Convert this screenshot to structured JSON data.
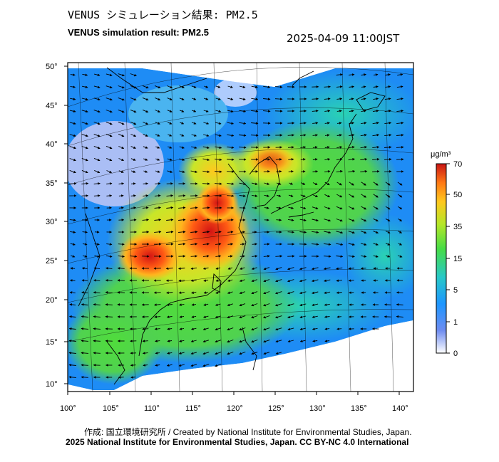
{
  "title_jp": "VENUS シミュレーション結果: PM2.5",
  "title_en": "VENUS simulation result: PM2.5",
  "timestamp": "2025-04-09 11:00JST",
  "lat_labels": [
    "50°",
    "45°",
    "40°",
    "35°",
    "30°",
    "25°",
    "20°",
    "15°",
    "10°"
  ],
  "lon_labels": [
    "100°",
    "105°",
    "110°",
    "115°",
    "120°",
    "125°",
    "130°",
    "135°",
    "140°"
  ],
  "colorbar": {
    "unit": "μg/m³",
    "ticks": [
      "70",
      "50",
      "35",
      "15",
      "5",
      "1",
      "0"
    ],
    "colors": [
      "#f0f0ff",
      "#5a78e6",
      "#1e96ff",
      "#28c8c8",
      "#46dc46",
      "#b4e628",
      "#ffc81e",
      "#ff8c14",
      "#e62814",
      "#b40a0a"
    ]
  },
  "credit_line1": "作成: 国立環境研究所 / Created by National Institute for Environmental Studies, Japan.",
  "credit_line2": "2025 National Institute for Environmental Studies, Japan. CC BY-NC 4.0 International"
}
